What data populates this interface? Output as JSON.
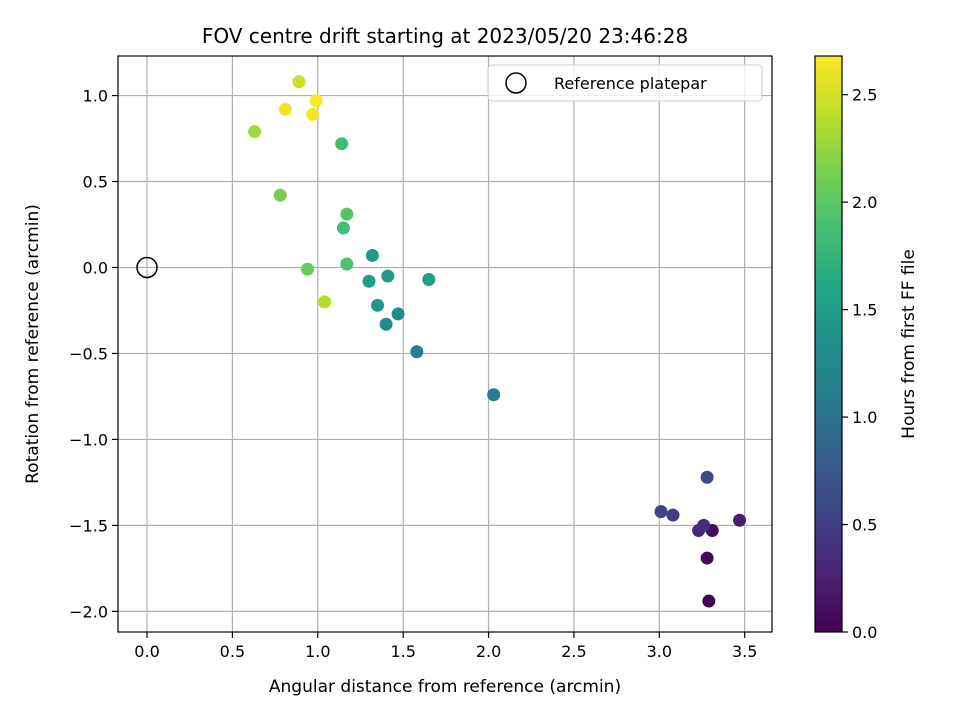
{
  "chart_data": {
    "type": "scatter",
    "title": "FOV centre drift starting at 2023/05/20 23:46:28",
    "xlabel": "Angular distance from reference (arcmin)",
    "ylabel": "Rotation from reference (arcmin)",
    "xlim": [
      -0.17,
      3.66
    ],
    "ylim": [
      -2.12,
      1.23
    ],
    "x_ticks": [
      0.0,
      0.5,
      1.0,
      1.5,
      2.0,
      2.5,
      3.0,
      3.5
    ],
    "x_tick_labels": [
      "0.0",
      "0.5",
      "1.0",
      "1.5",
      "2.0",
      "2.5",
      "3.0",
      "3.5"
    ],
    "y_ticks": [
      1.0,
      0.5,
      0.0,
      -0.5,
      -1.0,
      -1.5,
      -2.0
    ],
    "y_tick_labels": [
      "1.0",
      "0.5",
      "0.0",
      "−0.5",
      "−1.0",
      "−1.5",
      "−2.0"
    ],
    "grid": true,
    "legend": {
      "placement": "upper right",
      "entries": [
        {
          "label": "Reference platepar",
          "marker": "open-circle"
        }
      ]
    },
    "reference_point": {
      "x": 0.0,
      "y": 0.0
    },
    "colorbar": {
      "label": "Hours from first FF file",
      "colormap": "viridis",
      "range": [
        0.0,
        2.68
      ],
      "ticks": [
        0.0,
        0.5,
        1.0,
        1.5,
        2.0,
        2.5
      ],
      "tick_labels": [
        "0.0",
        "0.5",
        "1.0",
        "1.5",
        "2.0",
        "2.5"
      ]
    },
    "points": [
      {
        "x": 3.29,
        "y": -1.94,
        "c": 0.02
      },
      {
        "x": 3.28,
        "y": -1.69,
        "c": 0.05
      },
      {
        "x": 3.31,
        "y": -1.53,
        "c": 0.08
      },
      {
        "x": 3.23,
        "y": -1.53,
        "c": 0.3
      },
      {
        "x": 3.26,
        "y": -1.5,
        "c": 0.36
      },
      {
        "x": 3.47,
        "y": -1.47,
        "c": 0.22
      },
      {
        "x": 3.08,
        "y": -1.44,
        "c": 0.48
      },
      {
        "x": 3.01,
        "y": -1.42,
        "c": 0.55
      },
      {
        "x": 3.28,
        "y": -1.22,
        "c": 0.6
      },
      {
        "x": 2.03,
        "y": -0.74,
        "c": 1.12
      },
      {
        "x": 1.58,
        "y": -0.49,
        "c": 1.1
      },
      {
        "x": 1.4,
        "y": -0.33,
        "c": 1.3
      },
      {
        "x": 1.47,
        "y": -0.27,
        "c": 1.28
      },
      {
        "x": 1.35,
        "y": -0.22,
        "c": 1.42
      },
      {
        "x": 1.3,
        "y": -0.08,
        "c": 1.48
      },
      {
        "x": 1.41,
        "y": -0.05,
        "c": 1.46
      },
      {
        "x": 1.65,
        "y": -0.07,
        "c": 1.52
      },
      {
        "x": 1.32,
        "y": 0.07,
        "c": 1.44
      },
      {
        "x": 1.17,
        "y": 0.02,
        "c": 1.92
      },
      {
        "x": 1.15,
        "y": 0.23,
        "c": 1.86
      },
      {
        "x": 1.17,
        "y": 0.31,
        "c": 1.96
      },
      {
        "x": 1.14,
        "y": 0.72,
        "c": 1.84
      },
      {
        "x": 0.94,
        "y": -0.01,
        "c": 2.05
      },
      {
        "x": 1.04,
        "y": -0.2,
        "c": 2.38
      },
      {
        "x": 0.78,
        "y": 0.42,
        "c": 2.12
      },
      {
        "x": 0.63,
        "y": 0.79,
        "c": 2.3
      },
      {
        "x": 0.89,
        "y": 1.08,
        "c": 2.48
      },
      {
        "x": 0.81,
        "y": 0.92,
        "c": 2.63
      },
      {
        "x": 0.97,
        "y": 0.89,
        "c": 2.65
      },
      {
        "x": 0.99,
        "y": 0.97,
        "c": 2.68
      }
    ]
  }
}
